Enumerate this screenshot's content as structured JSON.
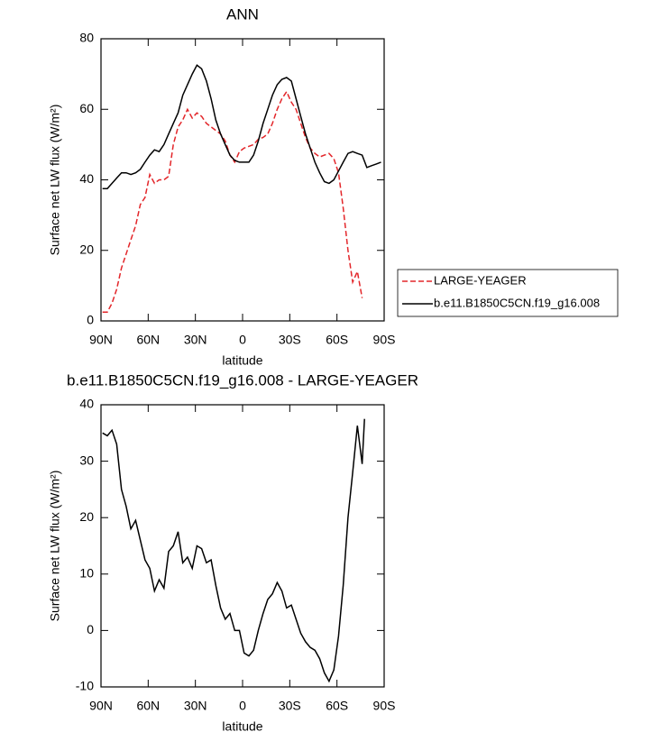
{
  "chart_data": [
    {
      "type": "line",
      "title": "ANN",
      "xlabel": "latitude",
      "ylabel": "Surface net LW flux (W/m²)",
      "x": [
        89,
        86,
        83,
        80,
        77,
        74,
        71,
        68,
        65,
        62,
        59,
        56,
        53,
        50,
        47,
        44,
        41,
        38,
        35,
        32,
        29,
        26,
        23,
        20,
        17,
        14,
        11,
        8,
        5,
        2,
        -1,
        -4,
        -7,
        -10,
        -13,
        -16,
        -19,
        -22,
        -25,
        -28,
        -31,
        -34,
        -37,
        -40,
        -43,
        -46,
        -49,
        -52,
        -55,
        -58,
        -61,
        -64,
        -67,
        -70,
        -73,
        -76,
        -79,
        -82,
        -85,
        -88
      ],
      "series": [
        {
          "name": "LARGE-YEAGER",
          "color": "#e3262a",
          "linestyle": "dashed",
          "values": [
            2.5,
            2.5,
            5,
            9,
            15,
            19,
            23,
            27,
            33,
            35,
            41.5,
            39,
            40,
            40,
            41,
            50,
            55,
            57,
            60,
            57.5,
            59,
            58,
            56,
            55,
            54,
            53,
            51,
            47,
            45,
            48,
            49,
            49.5,
            50,
            51.5,
            52,
            53,
            56,
            60,
            63,
            65,
            62,
            60,
            56,
            52,
            49,
            47.5,
            46.5,
            47,
            47.5,
            46,
            42,
            32,
            20,
            11,
            14,
            6.5,
            null,
            null,
            null,
            null
          ]
        },
        {
          "name": "b.e11.B1850C5CN.f19_g16.008",
          "color": "#000000",
          "linestyle": "solid",
          "values": [
            37.5,
            37.5,
            39,
            40.5,
            42,
            42,
            41.5,
            42,
            43,
            45,
            47,
            48.5,
            48,
            50,
            53,
            56,
            59,
            64,
            67,
            70,
            72.5,
            71.5,
            68,
            63,
            57,
            53,
            50,
            47,
            45.5,
            45,
            45,
            45,
            47,
            51,
            56,
            60,
            64,
            67,
            68.5,
            69,
            68,
            63,
            58,
            53,
            49,
            45,
            42,
            39.5,
            39,
            40,
            42.5,
            45,
            47.5,
            48,
            47.5,
            47,
            43.5,
            44,
            44.5,
            45
          ]
        }
      ],
      "xlim": [
        90,
        -90
      ],
      "xticks": [
        {
          "value": 90,
          "label": "90N"
        },
        {
          "value": 60,
          "label": "60N"
        },
        {
          "value": 30,
          "label": "30N"
        },
        0,
        {
          "value": -30,
          "label": "30S"
        },
        {
          "value": -60,
          "label": "60S"
        },
        {
          "value": -90,
          "label": "90S"
        }
      ],
      "ylim": [
        0,
        80
      ],
      "yticks": [
        0,
        20,
        40,
        60,
        80
      ],
      "legend": "right"
    },
    {
      "type": "line",
      "title": "b.e11.B1850C5CN.f19_g16.008 - LARGE-YEAGER",
      "xlabel": "latitude",
      "ylabel": "Surface net LW flux (W/m²)",
      "x": [
        89,
        86,
        83,
        80,
        77,
        74,
        71,
        68,
        65,
        62,
        59,
        56,
        53,
        50,
        47,
        44,
        41,
        38,
        35,
        32,
        29,
        26,
        23,
        20,
        17,
        14,
        11,
        8,
        5,
        2,
        -1,
        -4,
        -7,
        -10,
        -13,
        -16,
        -19,
        -22,
        -25,
        -28,
        -31,
        -34,
        -37,
        -40,
        -43,
        -46,
        -49,
        -52,
        -55,
        -58,
        -61,
        -64,
        -67,
        -70,
        -73,
        -76,
        -77.5
      ],
      "values": [
        35,
        34.5,
        35.5,
        33,
        25,
        22,
        18,
        19.5,
        16,
        12.5,
        11,
        7,
        9,
        7.5,
        14,
        15,
        17.5,
        12,
        13,
        11,
        15,
        14.5,
        12,
        12.5,
        8,
        4,
        2,
        3,
        0,
        0,
        -4,
        -4.5,
        -3.5,
        0,
        3,
        5.5,
        6.5,
        8.5,
        7,
        4,
        4.5,
        2,
        -0.5,
        -2,
        -3,
        -3.5,
        -5,
        -7.5,
        -9,
        -7,
        -1,
        8,
        20,
        28,
        36.3,
        29.5,
        37.5
      ],
      "color": "#000000",
      "xlim": [
        90,
        -90
      ],
      "xticks": [
        {
          "value": 90,
          "label": "90N"
        },
        {
          "value": 60,
          "label": "60N"
        },
        {
          "value": 30,
          "label": "30N"
        },
        0,
        {
          "value": -30,
          "label": "30S"
        },
        {
          "value": -60,
          "label": "60S"
        },
        {
          "value": -90,
          "label": "90S"
        }
      ],
      "ylim": [
        -10,
        40
      ],
      "yticks": [
        -10,
        0,
        10,
        20,
        30,
        40
      ]
    }
  ]
}
